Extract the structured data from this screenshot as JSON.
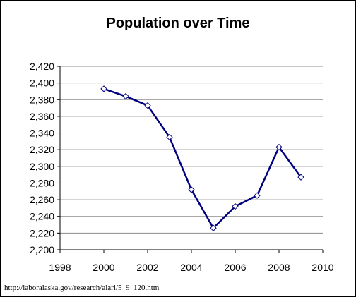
{
  "chart_data": {
    "type": "line",
    "title": "Population over Time",
    "xlabel": "",
    "ylabel": "",
    "xlim": [
      1998,
      2010
    ],
    "ylim": [
      2200,
      2420
    ],
    "x_ticks": [
      1998,
      2000,
      2002,
      2004,
      2006,
      2008,
      2010
    ],
    "y_ticks": [
      2200,
      2220,
      2240,
      2260,
      2280,
      2300,
      2320,
      2340,
      2360,
      2380,
      2400,
      2420
    ],
    "x_tick_labels": [
      "1998",
      "2000",
      "2002",
      "2004",
      "2006",
      "2008",
      "2010"
    ],
    "y_tick_labels": [
      "2,200",
      "2,220",
      "2,240",
      "2,260",
      "2,280",
      "2,300",
      "2,320",
      "2,340",
      "2,360",
      "2,380",
      "2,400",
      "2,420"
    ],
    "grid": "horizontal",
    "legend": "none",
    "series": [
      {
        "color": "#000080",
        "marker": "diamond",
        "x": [
          2000,
          2001,
          2002,
          2003,
          2004,
          2005,
          2006,
          2007,
          2008,
          2009
        ],
        "y": [
          2393,
          2384,
          2373,
          2335,
          2272,
          2226,
          2252,
          2265,
          2323,
          2287
        ]
      }
    ]
  },
  "footer": {
    "source": "http://laboralaska.gov/research/alari/5_9_120.htm"
  }
}
